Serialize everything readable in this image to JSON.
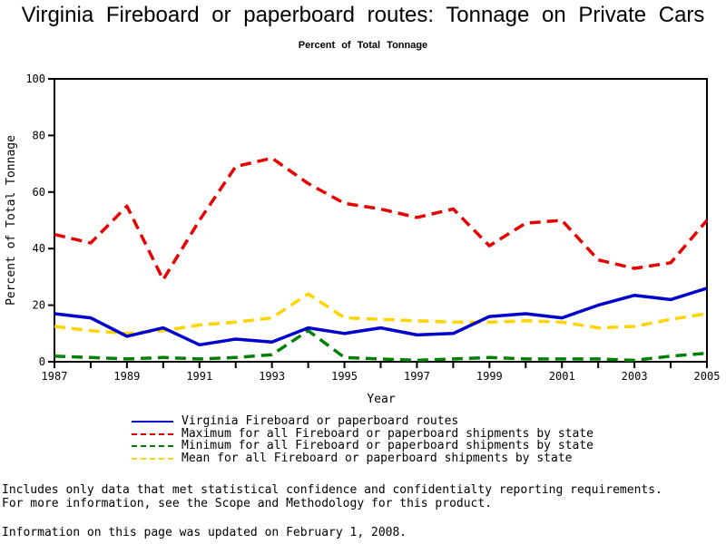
{
  "page": {
    "title": "Virginia Fireboard or paperboard routes: Tonnage on Private Cars",
    "subtitle": "Percent of Total Tonnage",
    "footnote_line1": "Includes only data that met statistical confidence and confidentialty reporting requirements.",
    "footnote_line2": "For more information, see the Scope and Methodology for this product.",
    "updated_note": "Information on this page was updated on February 1, 2008."
  },
  "chart_data": {
    "type": "line",
    "title": "Virginia Fireboard or paperboard routes: Tonnage on Private Cars",
    "subtitle": "Percent of Total Tonnage",
    "xlabel": "Year",
    "ylabel": "Percent of Total Tonnage",
    "xlim": [
      1987,
      2005
    ],
    "ylim": [
      0,
      100
    ],
    "xticks_labeled": [
      1987,
      1989,
      1991,
      1993,
      1995,
      1997,
      1999,
      2001,
      2003,
      2005
    ],
    "yticks": [
      0,
      20,
      40,
      60,
      80,
      100
    ],
    "grid": false,
    "legend_position": "bottom-left",
    "x": [
      1987,
      1988,
      1989,
      1990,
      1991,
      1992,
      1993,
      1994,
      1995,
      1996,
      1997,
      1998,
      1999,
      2000,
      2001,
      2002,
      2003,
      2004,
      2005
    ],
    "series": [
      {
        "label": "Virginia Fireboard or paperboard routes",
        "color": "#0000cc",
        "dash": "solid",
        "values": [
          17,
          15.5,
          9,
          12,
          6,
          8,
          7,
          12,
          10,
          12,
          9.5,
          10,
          16,
          17,
          15.5,
          20,
          23.5,
          22,
          26
        ]
      },
      {
        "label": "Maximum for all Fireboard or paperboard shipments by state",
        "color": "#e60000",
        "dash": "dashed",
        "values": [
          45,
          42,
          55,
          29,
          50,
          69,
          72,
          63,
          56,
          54,
          51,
          54,
          41,
          49,
          50,
          36,
          33,
          35,
          50
        ]
      },
      {
        "label": "Minimum for all Fireboard or paperboard shipments by state",
        "color": "#008000",
        "dash": "dashed",
        "values": [
          2,
          1.5,
          1,
          1.5,
          1,
          1.5,
          2.5,
          11,
          1.5,
          1,
          0.5,
          1,
          1.5,
          1,
          1,
          1,
          0.5,
          2,
          3
        ]
      },
      {
        "label": "Mean for all Fireboard or paperboard shipments by state",
        "color": "#ffd400",
        "dash": "dashed",
        "values": [
          12.5,
          11,
          10,
          11,
          13,
          14,
          15.5,
          24,
          15.5,
          15,
          14.5,
          14,
          14,
          14.5,
          14,
          12,
          12.5,
          15,
          17
        ]
      }
    ]
  }
}
